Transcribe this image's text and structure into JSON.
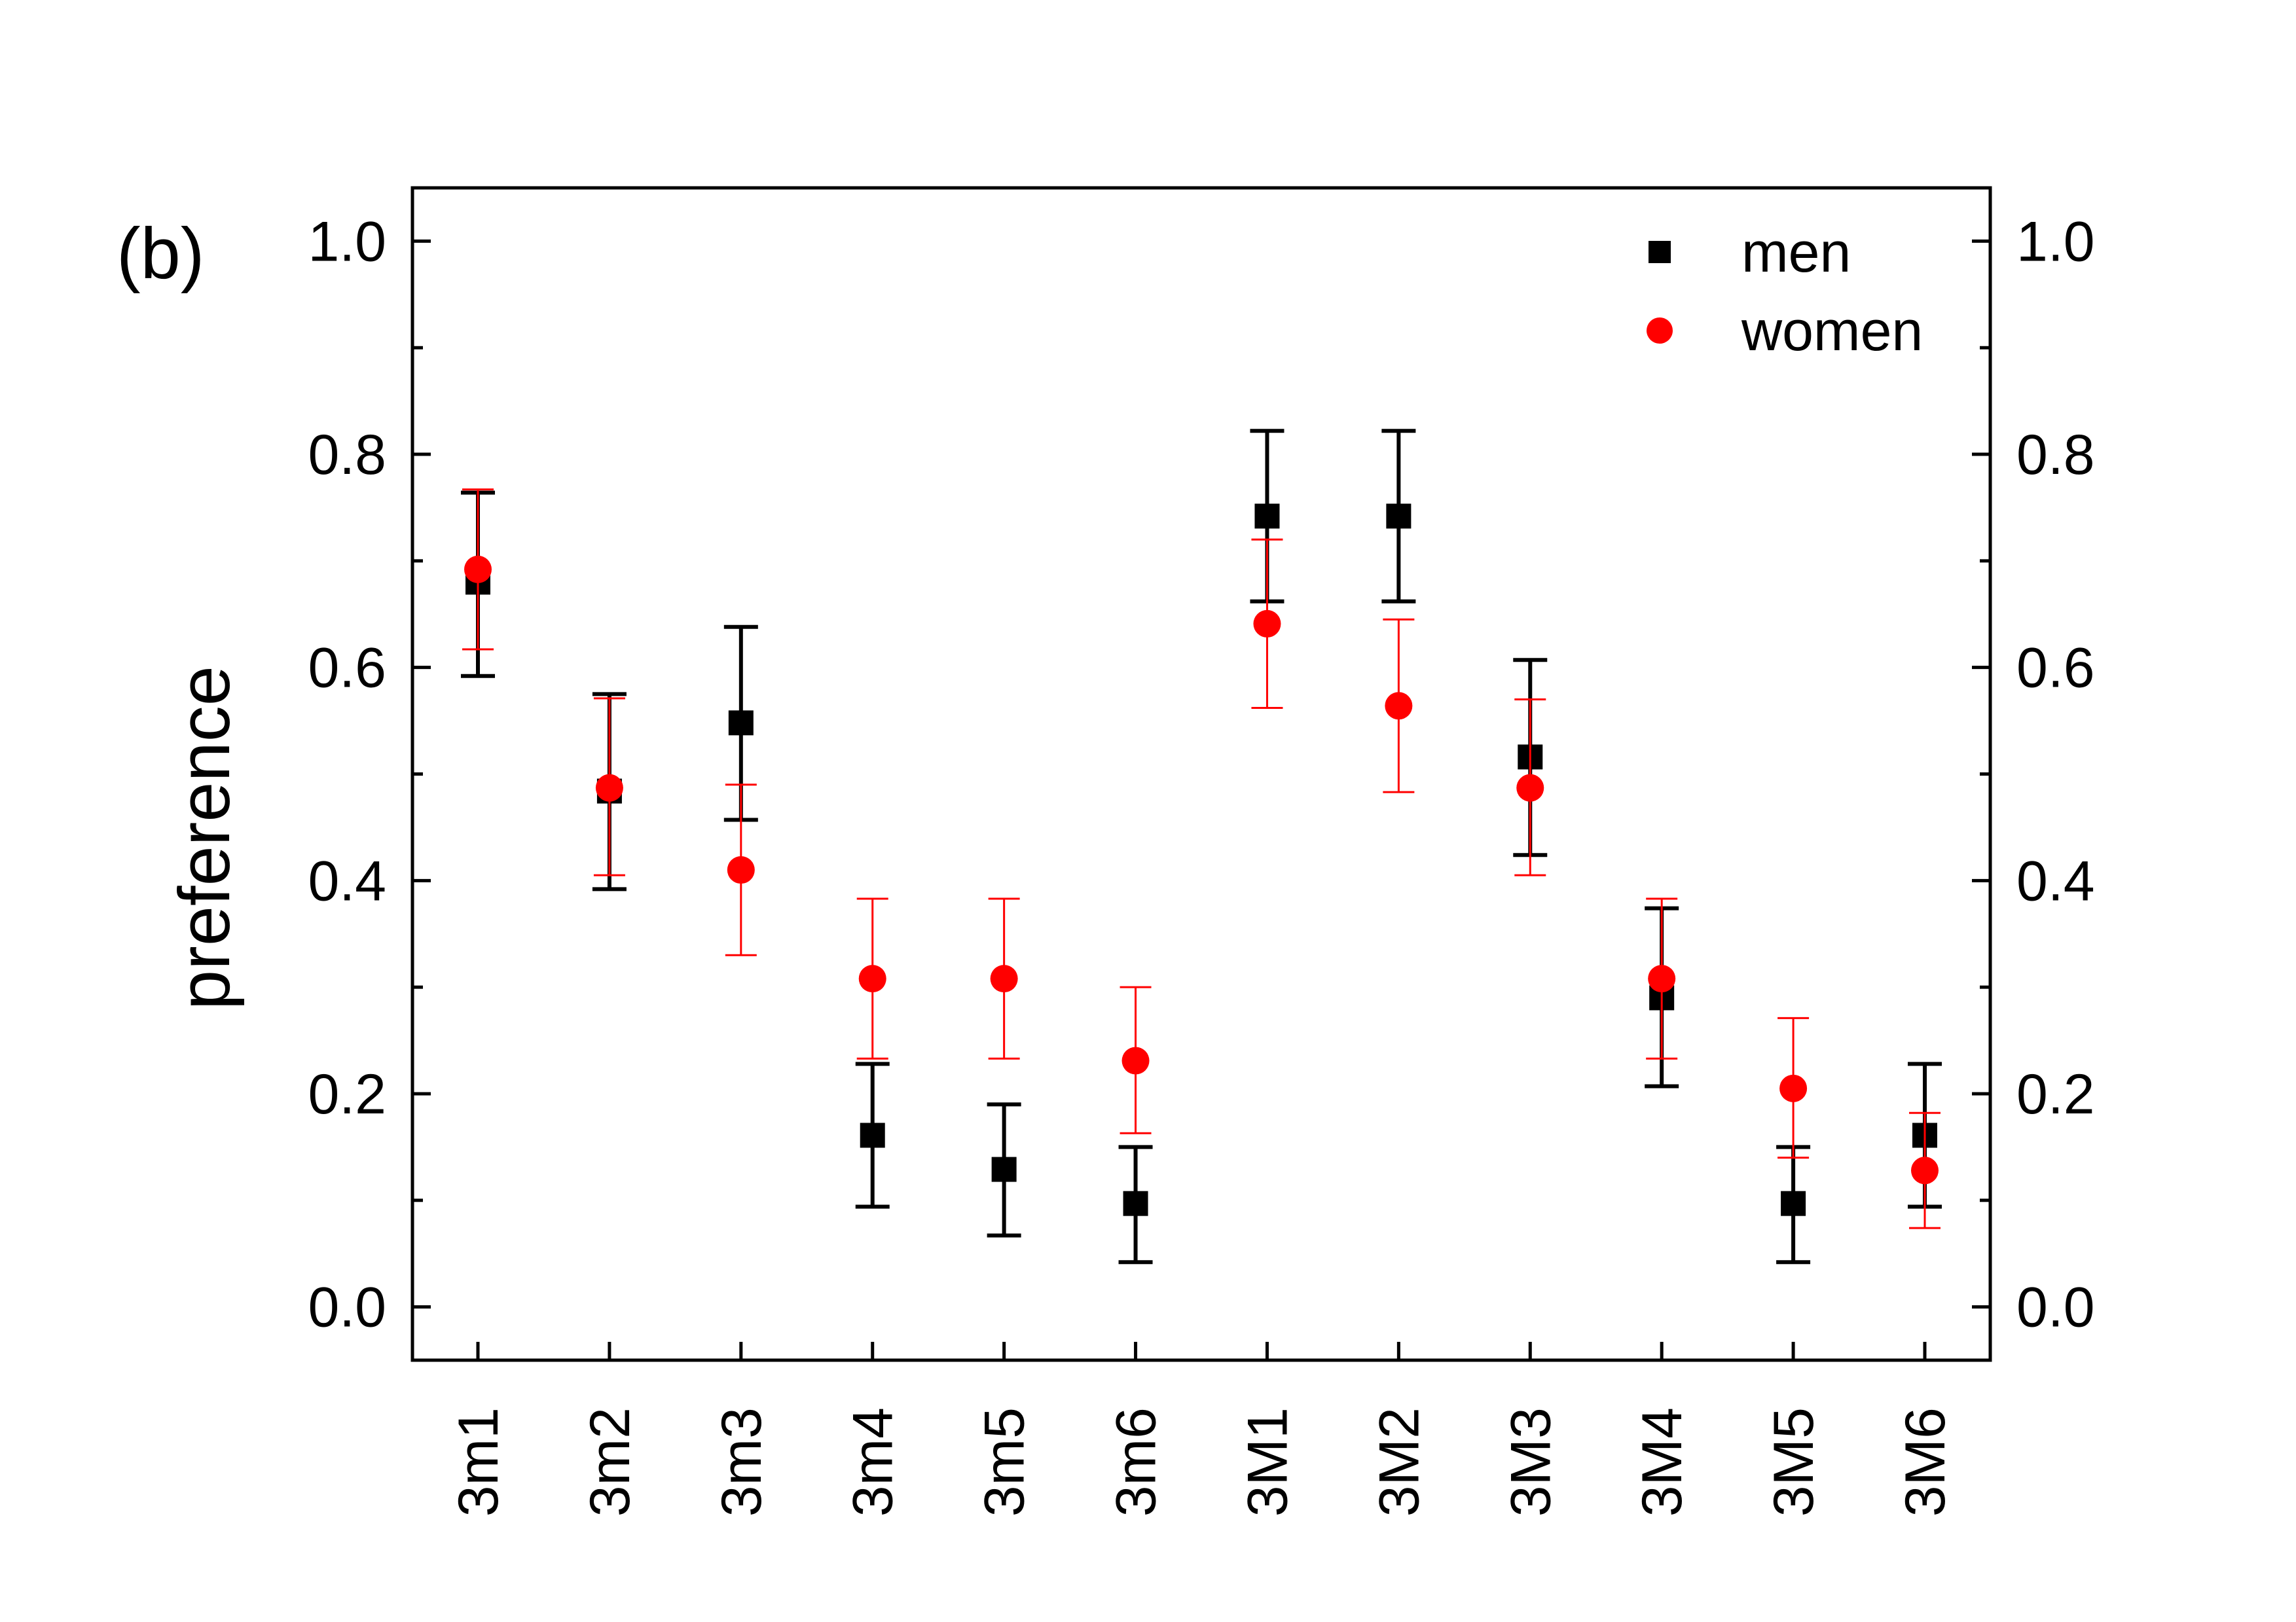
{
  "panel_label": "(b)",
  "chart_data": {
    "type": "scatter",
    "categories": [
      "3m1",
      "3m2",
      "3m3",
      "3m4",
      "3m5",
      "3m6",
      "3M1",
      "3M2",
      "3M3",
      "3M4",
      "3M5",
      "3M6"
    ],
    "ylabel": "preference",
    "xlabel": "",
    "ylim": [
      -0.05,
      1.05
    ],
    "yticks": [
      "0.0",
      "0.2",
      "0.4",
      "0.6",
      "0.8",
      "1.0"
    ],
    "grid": false,
    "legend_position": "top-right",
    "series": [
      {
        "name": "men",
        "marker": "square",
        "color": "#000000",
        "values": [
          0.68,
          0.484,
          0.548,
          0.161,
          0.129,
          0.097,
          0.742,
          0.742,
          0.516,
          0.29,
          0.097,
          0.161
        ],
        "err_low": [
          0.592,
          0.392,
          0.457,
          0.094,
          0.067,
          0.042,
          0.662,
          0.662,
          0.424,
          0.207,
          0.042,
          0.094
        ],
        "err_high": [
          0.764,
          0.575,
          0.638,
          0.228,
          0.19,
          0.15,
          0.822,
          0.822,
          0.607,
          0.374,
          0.15,
          0.228
        ]
      },
      {
        "name": "women",
        "marker": "circle",
        "color": "#ff0000",
        "values": [
          0.692,
          0.487,
          0.41,
          0.308,
          0.308,
          0.231,
          0.641,
          0.564,
          0.487,
          0.308,
          0.205,
          0.128
        ],
        "err_low": [
          0.617,
          0.405,
          0.33,
          0.233,
          0.233,
          0.163,
          0.562,
          0.483,
          0.405,
          0.233,
          0.14,
          0.074
        ],
        "err_high": [
          0.767,
          0.571,
          0.49,
          0.383,
          0.383,
          0.3,
          0.72,
          0.645,
          0.57,
          0.383,
          0.271,
          0.182
        ]
      }
    ]
  }
}
